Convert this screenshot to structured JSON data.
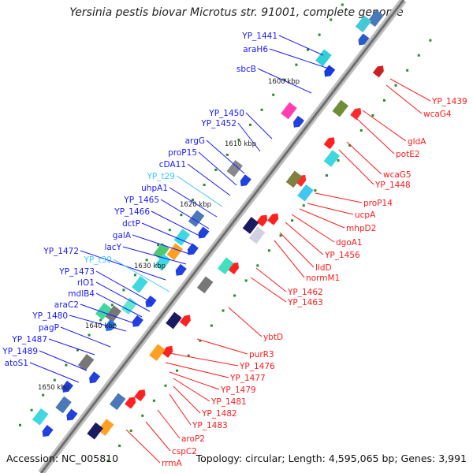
{
  "title": "Yersinia pestis biovar Microtus str. 91001, complete genome",
  "accession": "Accession: NC_005810",
  "summary": "Topology: circular; Length: 4,595,065 bp; Genes: 3,991",
  "colors": {
    "backbone": "#8a8a8a",
    "forward_label": "#1a1aff",
    "reverse_label": "#ff1a1a",
    "trna_label": "#3cc8ff",
    "kbp_text": "#222222"
  },
  "scale_ticks": [
    "1600 kbp",
    "1610 kbp",
    "1620 kbp",
    "1630 kbp",
    "1640 kbp",
    "1650 kbp"
  ],
  "forward_labels": [
    "YP_1441",
    "araH6",
    "sbcB",
    "YP_1450",
    "YP_1452",
    "argG",
    "proP15",
    "cDA11",
    "YP_t29",
    "uhpA1",
    "YP_1465",
    "YP_1466",
    "dctP",
    "galA",
    "lacY",
    "YP_1472",
    "YP_t30",
    "YP_1473",
    "rlO1",
    "mdlB4",
    "araC2",
    "YP_1480",
    "pagP",
    "YP_1487",
    "YP_1489",
    "atoS1"
  ],
  "reverse_labels": [
    "YP_1439",
    "wcaG4",
    "gldA",
    "potE2",
    "wcaG5",
    "YP_1448",
    "proP14",
    "ucpA",
    "mhpD2",
    "dgoA1",
    "YP_1456",
    "lldD",
    "normM1",
    "YP_1462",
    "YP_1463",
    "ybtD",
    "purR3",
    "YP_1476",
    "YP_1477",
    "YP_1479",
    "YP_1481",
    "YP_1482",
    "YP_1483",
    "aroP2",
    "cspC2",
    "rrmA"
  ]
}
